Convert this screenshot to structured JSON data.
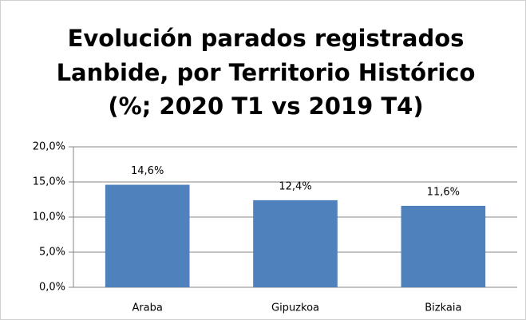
{
  "chart_data": {
    "type": "bar",
    "title": [
      "Evolución parados registrados",
      "Lanbide, por Territorio Histórico",
      "(%; 2020 T1 vs 2019 T4)"
    ],
    "categories": [
      "Araba",
      "Gipuzkoa",
      "Bizkaia"
    ],
    "values": [
      14.6,
      12.4,
      11.6
    ],
    "value_labels": [
      "14,6%",
      "12,4%",
      "11,6%"
    ],
    "color": "#4f81bd",
    "ylim": [
      0,
      20
    ],
    "yticks": [
      {
        "value": 0,
        "label": "0,0%"
      },
      {
        "value": 5,
        "label": "5,0%"
      },
      {
        "value": 10,
        "label": "10,0%"
      },
      {
        "value": 15,
        "label": "15,0%"
      },
      {
        "value": 20,
        "label": "20,0%"
      }
    ],
    "grid": true
  }
}
